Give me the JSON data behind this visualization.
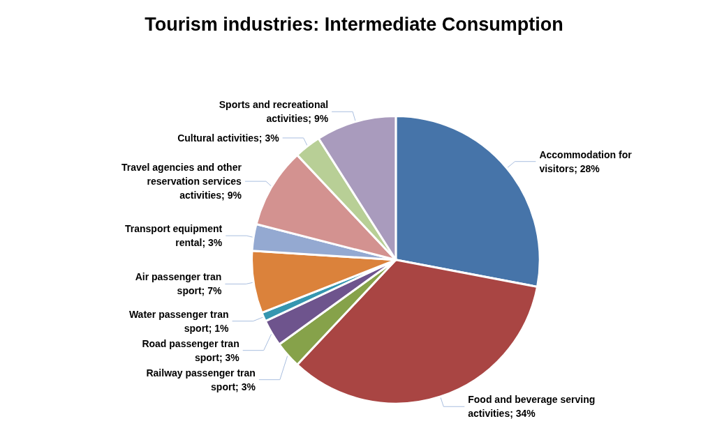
{
  "chart_data": {
    "type": "pie",
    "title": "Tourism industries: Intermediate Consumption",
    "categories": [
      "Accommodation for visitors",
      "Food and beverage serving activities",
      "Railway passenger tran sport",
      "Road passenger tran sport",
      "Water passenger tran sport",
      "Air passenger tran sport",
      "Transport equipment rental",
      "Travel agencies and other reservation services activities",
      "Cultural activities",
      "Sports and recreational activities"
    ],
    "values": [
      28,
      34,
      3,
      3,
      1,
      7,
      3,
      9,
      3,
      9
    ],
    "colors": [
      "#4674a9",
      "#a94543",
      "#86a24a",
      "#6e548d",
      "#3596b0",
      "#db823b",
      "#94a9d1",
      "#d39290",
      "#b8cf96",
      "#a99bbd"
    ],
    "value_labels": [
      "28%",
      "34%",
      "3%",
      "3%",
      "1%",
      "7%",
      "3%",
      "9%",
      "3%",
      "9%"
    ],
    "legend": false
  }
}
